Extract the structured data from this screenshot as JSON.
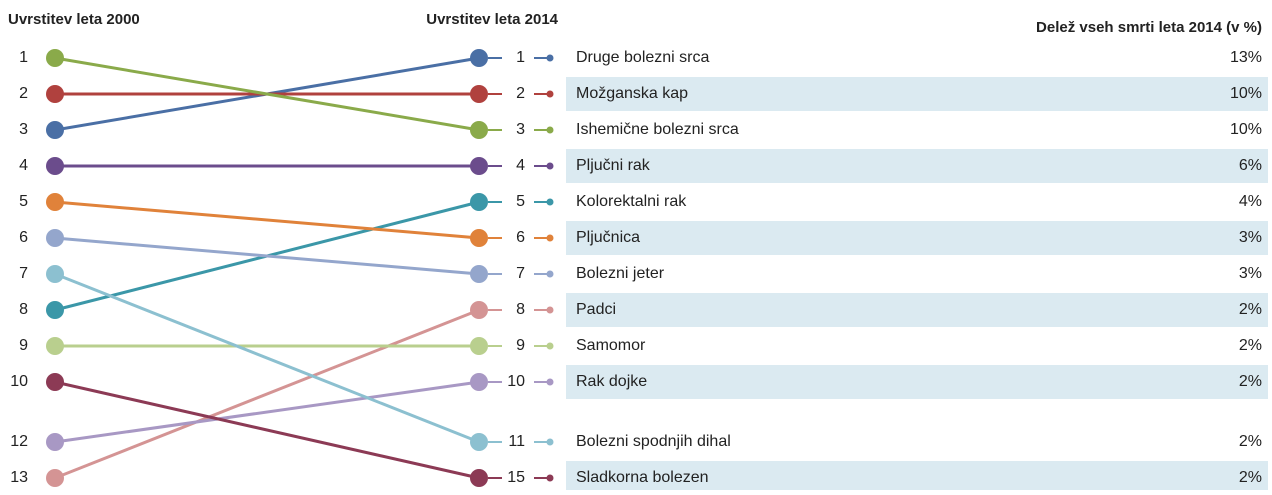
{
  "chart_data": {
    "type": "slope",
    "left_title": "Uvrstitev leta 2000",
    "right_title": "Uvrstitev leta 2014",
    "share_title": "Delež vseh smrti leta 2014 (v %)",
    "series": [
      {
        "name": "Druge bolezni srca",
        "color": "#4a6fa5",
        "rank_2000": 3,
        "rank_2014": 1,
        "share": 13,
        "share_label": "13%"
      },
      {
        "name": "Možganska kap",
        "color": "#b0413e",
        "rank_2000": 2,
        "rank_2014": 2,
        "share": 10,
        "share_label": "10%"
      },
      {
        "name": "Ishemične bolezni srca",
        "color": "#8aaa4a",
        "rank_2000": 1,
        "rank_2014": 3,
        "share": 10,
        "share_label": "10%"
      },
      {
        "name": "Pljučni rak",
        "color": "#6b4c8c",
        "rank_2000": 4,
        "rank_2014": 4,
        "share": 6,
        "share_label": "6%"
      },
      {
        "name": "Kolorektalni rak",
        "color": "#3b97a8",
        "rank_2000": 8,
        "rank_2014": 5,
        "share": 4,
        "share_label": "4%"
      },
      {
        "name": "Pljučnica",
        "color": "#e0823a",
        "rank_2000": 5,
        "rank_2014": 6,
        "share": 3,
        "share_label": "3%"
      },
      {
        "name": "Bolezni jeter",
        "color": "#94a6cc",
        "rank_2000": 6,
        "rank_2014": 7,
        "share": 3,
        "share_label": "3%"
      },
      {
        "name": "Padci",
        "color": "#d49494",
        "rank_2000": 13,
        "rank_2014": 8,
        "share": 2,
        "share_label": "2%"
      },
      {
        "name": "Samomor",
        "color": "#b9cf8e",
        "rank_2000": 9,
        "rank_2014": 9,
        "share": 2,
        "share_label": "2%"
      },
      {
        "name": "Rak dojke",
        "color": "#a898c4",
        "rank_2000": 12,
        "rank_2014": 10,
        "share": 2,
        "share_label": "2%"
      },
      {
        "name": "Bolezni spodnjih dihal",
        "color": "#8cc0d0",
        "rank_2000": 7,
        "rank_2014": 11,
        "share": 2,
        "share_label": "2%"
      },
      {
        "name": "Sladkorna bolezen",
        "color": "#8c3a55",
        "rank_2000": 10,
        "rank_2014": 15,
        "share": 2,
        "share_label": "2%"
      }
    ]
  }
}
